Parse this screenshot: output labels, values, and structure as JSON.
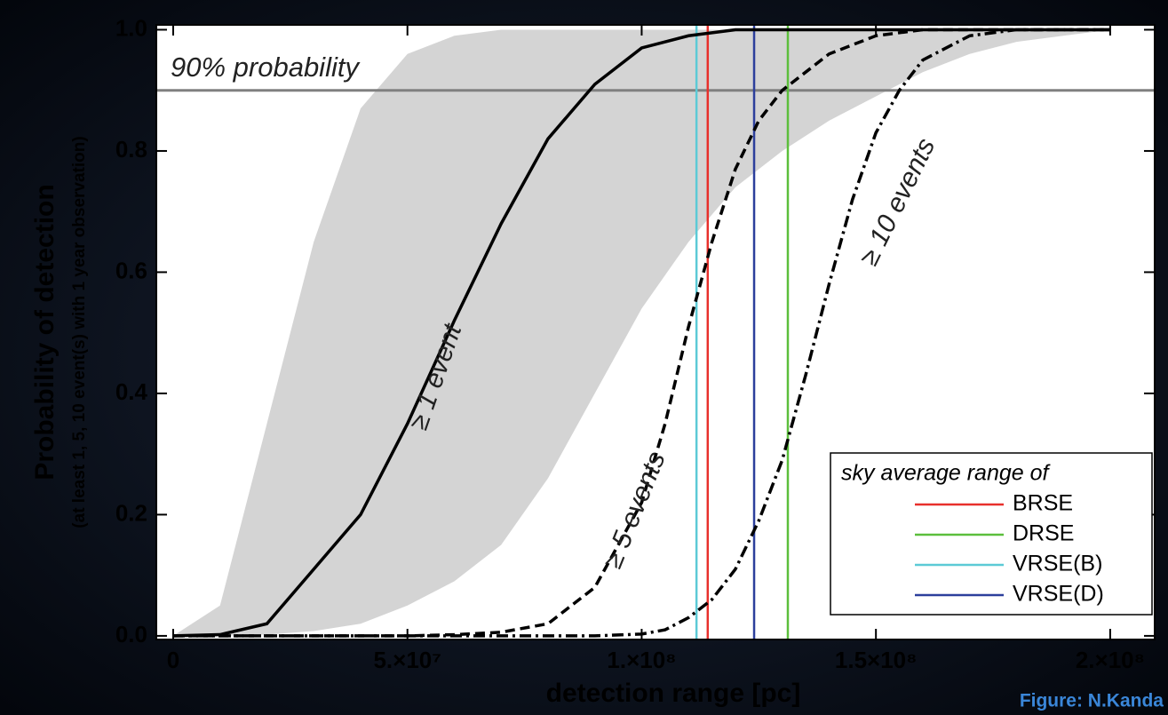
{
  "chart_data": {
    "type": "line",
    "xlabel": "detection range [pc]",
    "ylabel": "Probability of detection",
    "ysublabel": "(at least 1, 5, 10 event(s) with 1 year observation)",
    "credit": "Figure: N.Kanda",
    "xlim": [
      -3600000,
      209500000
    ],
    "ylim": [
      -0.006,
      1.008
    ],
    "xticks": [
      0,
      {
        "value": 50000000,
        "label": "5.×10⁷"
      },
      {
        "value": 100000000,
        "label": "1.×10⁸"
      },
      {
        "value": 150000000,
        "label": "1.5×10⁸"
      },
      {
        "value": 200000000,
        "label": "2.×10⁸"
      }
    ],
    "yticks": [
      {
        "value": 0,
        "label": "0.0"
      },
      0.2,
      0.4,
      0.6,
      0.8,
      {
        "value": 1,
        "label": "1.0"
      }
    ],
    "band": {
      "color": "#d4d4d4",
      "x": [
        0,
        10000000,
        20000000,
        30000000,
        40000000,
        50000000,
        60000000,
        70000000,
        80000000,
        90000000,
        100000000,
        110000000,
        120000000,
        130000000,
        140000000,
        150000000,
        160000000,
        170000000,
        180000000,
        190000000,
        200000000
      ],
      "upper": [
        0,
        0.05,
        0.35,
        0.65,
        0.87,
        0.96,
        0.99,
        1,
        1,
        1,
        1,
        1,
        1,
        1,
        1,
        1,
        1,
        1,
        1,
        1,
        1
      ],
      "lower": [
        0,
        0,
        0.002,
        0.008,
        0.02,
        0.05,
        0.09,
        0.15,
        0.26,
        0.4,
        0.54,
        0.65,
        0.74,
        0.8,
        0.85,
        0.89,
        0.93,
        0.96,
        0.98,
        0.99,
        1
      ]
    },
    "hline": {
      "y": 0.9,
      "label": "90% probability",
      "color": "#808080"
    },
    "series": [
      {
        "name": "≥ 1 event",
        "color": "#000000",
        "dash": "solid",
        "x": [
          0,
          10000000,
          20000000,
          30000000,
          40000000,
          50000000,
          60000000,
          70000000,
          80000000,
          90000000,
          100000000,
          110000000,
          120000000,
          130000000,
          140000000,
          150000000,
          160000000,
          170000000,
          180000000,
          190000000,
          200000000
        ],
        "values": [
          0,
          0.002,
          0.02,
          0.11,
          0.2,
          0.35,
          0.52,
          0.68,
          0.82,
          0.91,
          0.97,
          0.99,
          1,
          1,
          1,
          1,
          1,
          1,
          1,
          1,
          1
        ]
      },
      {
        "name": "≥ 5 events",
        "color": "#000000",
        "dash": "dashed",
        "x": [
          0,
          50000000,
          60000000,
          70000000,
          80000000,
          90000000,
          100000000,
          105000000,
          110000000,
          115000000,
          120000000,
          125000000,
          130000000,
          140000000,
          150000000,
          160000000,
          170000000,
          200000000
        ],
        "values": [
          0,
          0,
          0.002,
          0.006,
          0.02,
          0.08,
          0.22,
          0.35,
          0.51,
          0.65,
          0.77,
          0.85,
          0.9,
          0.96,
          0.99,
          1,
          1,
          1
        ]
      },
      {
        "name": "≥ 10 events",
        "color": "#000000",
        "dash": "dashdot",
        "x": [
          0,
          90000000,
          100000000,
          105000000,
          110000000,
          115000000,
          120000000,
          125000000,
          130000000,
          135000000,
          140000000,
          145000000,
          150000000,
          155000000,
          160000000,
          170000000,
          180000000,
          200000000
        ],
        "values": [
          0,
          0,
          0.003,
          0.01,
          0.03,
          0.06,
          0.11,
          0.19,
          0.29,
          0.43,
          0.58,
          0.72,
          0.83,
          0.9,
          0.95,
          0.99,
          1,
          1
        ]
      }
    ],
    "legend_title": "sky average range of",
    "legend": "bottom-right",
    "vlines": [
      {
        "name": "BRSE",
        "color": "#e8302c",
        "x": 114100000
      },
      {
        "name": "DRSE",
        "color": "#5cbf3c",
        "x": 131200000
      },
      {
        "name": "VRSE(B)",
        "color": "#5ccad6",
        "x": 111700000
      },
      {
        "name": "VRSE(D)",
        "color": "#2c3f9c",
        "x": 124000000
      }
    ]
  }
}
